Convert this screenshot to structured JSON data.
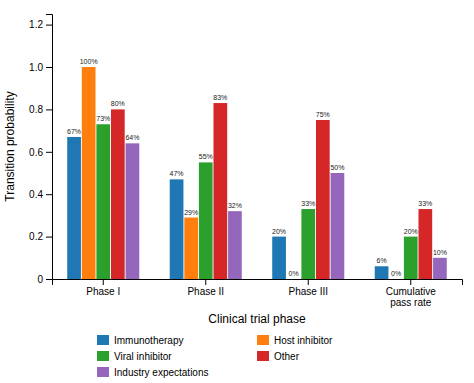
{
  "chart_data": {
    "type": "bar",
    "xlabel": "Clinical trial phase",
    "ylabel": "Transition probability",
    "categories": [
      "Phase I",
      "Phase II",
      "Phase III",
      "Cumulative\npass rate"
    ],
    "series": [
      {
        "name": "Immunotherapy",
        "values": [
          0.67,
          0.47,
          0.2,
          0.06
        ],
        "value_labels": [
          "67%",
          "47%",
          "20%",
          "6%"
        ]
      },
      {
        "name": "Host inhibitor",
        "values": [
          1.0,
          0.29,
          0.0,
          0.0
        ],
        "value_labels": [
          "100%",
          "29%",
          "0%",
          "0%"
        ]
      },
      {
        "name": "Viral inhibitor",
        "values": [
          0.73,
          0.55,
          0.33,
          0.2
        ],
        "value_labels": [
          "73%",
          "55%",
          "33%",
          "20%"
        ]
      },
      {
        "name": "Other",
        "values": [
          0.8,
          0.83,
          0.75,
          0.33
        ],
        "value_labels": [
          "80%",
          "83%",
          "75%",
          "33%"
        ]
      },
      {
        "name": "Industry expectations",
        "values": [
          0.64,
          0.32,
          0.5,
          0.1
        ],
        "value_labels": [
          "64%",
          "32%",
          "50%",
          "10%"
        ]
      }
    ],
    "ylim": [
      0,
      1.25
    ],
    "yticks": [
      0,
      0.2,
      0.4,
      0.6,
      0.8,
      {
        "value": 1.0,
        "label": "1.0"
      },
      1.2
    ],
    "data_labels": true,
    "legend": "bottom",
    "grid": false
  }
}
